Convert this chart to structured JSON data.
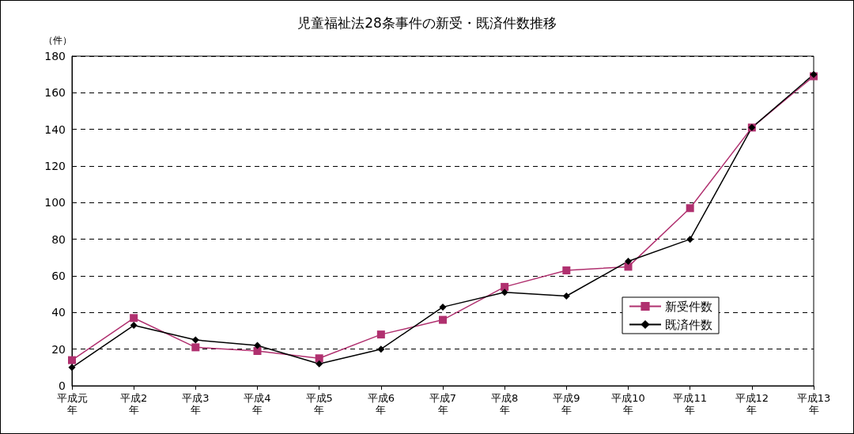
{
  "chart_data": {
    "type": "line",
    "title": "児童福祉法28条事件の新受・既済件数推移",
    "ylabel": "（件）",
    "categories": [
      "平成元年",
      "平成2年",
      "平成3年",
      "平成4年",
      "平成5年",
      "平成6年",
      "平成7年",
      "平成8年",
      "平成9年",
      "平成10年",
      "平成11年",
      "平成12年",
      "平成13年"
    ],
    "series": [
      {
        "name": "新受件数",
        "color": "#b0306f",
        "marker": "square",
        "values": [
          14,
          37,
          21,
          19,
          15,
          28,
          36,
          54,
          63,
          65,
          97,
          141,
          169
        ]
      },
      {
        "name": "既済件数",
        "color": "#000000",
        "marker": "diamond",
        "values": [
          10,
          33,
          25,
          22,
          12,
          20,
          43,
          51,
          49,
          68,
          80,
          141,
          170
        ]
      }
    ],
    "ylim": [
      0,
      180
    ],
    "yticks": [
      0,
      20,
      40,
      60,
      80,
      100,
      120,
      140,
      160,
      180
    ],
    "grid": "y",
    "legend": "right",
    "line_style": "solid"
  }
}
